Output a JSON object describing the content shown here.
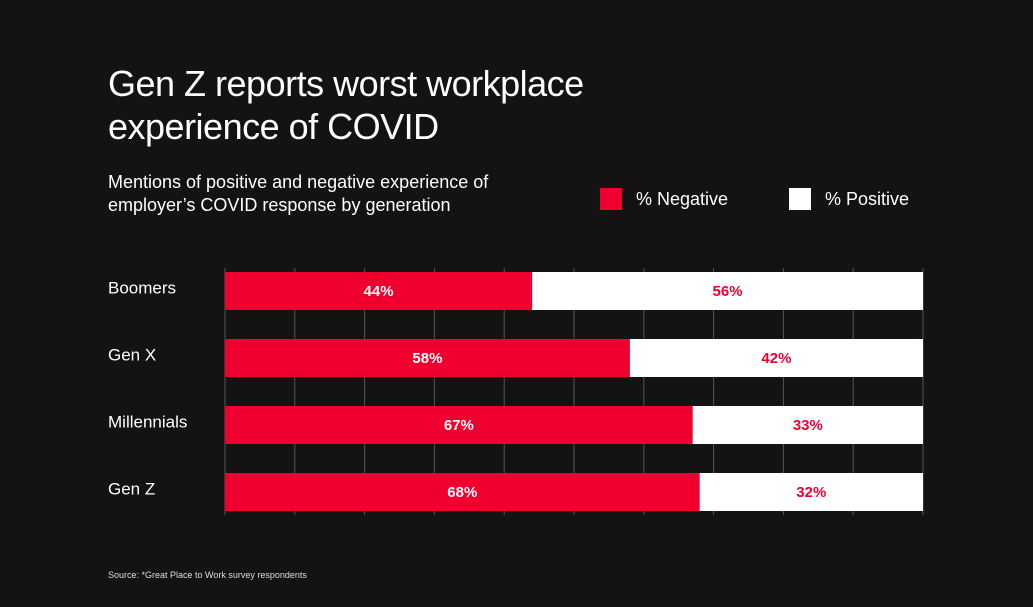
{
  "header": {
    "title": "Gen Z reports worst workplace experience of COVID",
    "subtitle": "Mentions of positive and negative experience of employer’s COVID response by generation"
  },
  "footer": {
    "source": "Source: *Great Place to Work survey respondents"
  },
  "colors": {
    "background": "#141213",
    "negative": "#f0002e",
    "positive": "#ffffff",
    "grid": "#555555"
  },
  "chart_data": {
    "type": "bar",
    "orientation": "horizontal",
    "stacked": true,
    "title": "Gen Z reports worst workplace experience of COVID",
    "subtitle": "Mentions of positive and negative experience of employer’s COVID response by generation",
    "categories": [
      "Boomers",
      "Gen X",
      "Millennials",
      "Gen Z"
    ],
    "series": [
      {
        "name": "% Negative",
        "values": [
          44,
          58,
          67,
          68
        ],
        "labels": [
          "44%",
          "58%",
          "67%",
          "68%"
        ],
        "color": "#f0002e"
      },
      {
        "name": "% Positive",
        "values": [
          56,
          42,
          33,
          32
        ],
        "labels": [
          "56%",
          "42%",
          "33%",
          "32%"
        ],
        "color": "#ffffff"
      }
    ],
    "xlim": [
      0,
      100
    ],
    "grid": true,
    "legend_position": "top-right"
  }
}
